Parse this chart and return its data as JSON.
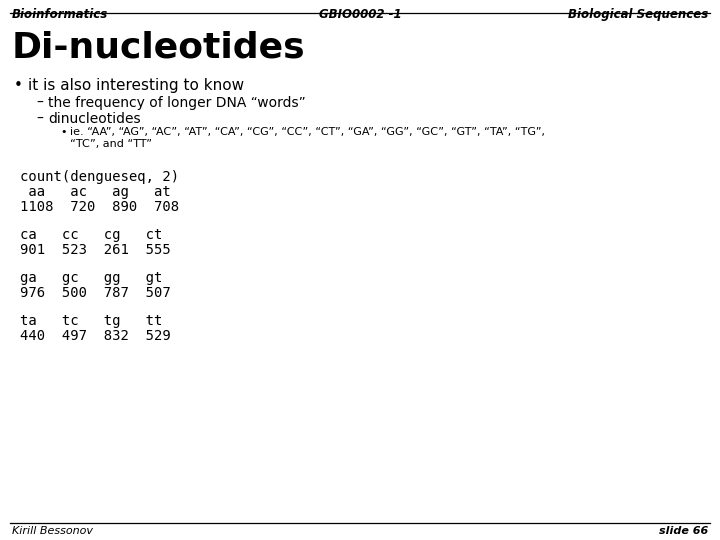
{
  "title_left": "Bioinformatics",
  "title_center": "GBIO0002 -1",
  "title_right": "Biological Sequences",
  "slide_title": "Di-nucleotides",
  "bullet1": "it is also interesting to know",
  "sub1": "the frequency of longer DNA “words”",
  "sub2": "dinucleotides",
  "sub3": "ie. “AA”, “AG”, “AC”, “AT”, “CA”, “CG”, “CC”, “CT”, “GA”, “GG”, “GC”, “GT”, “TA”, “TG”,",
  "sub3b": "“TC”, and “TT”",
  "code_line1": "count(dengueseq, 2)",
  "code_line2": " aa   ac   ag   at",
  "code_line3": "1108  720  890  708",
  "code_line4": "ca   cc   cg   ct",
  "code_line5": "901  523  261  555",
  "code_line6": "ga   gc   gg   gt",
  "code_line7": "976  500  787  507",
  "code_line8": "ta   tc   tg   tt",
  "code_line9": "440  497  832  529",
  "footer_left": "Kirill Bessonov",
  "footer_right": "slide 66",
  "bg_color": "#ffffff",
  "text_color": "#000000",
  "line_color": "#000000",
  "header_fontsize": 8.5,
  "title_fontsize": 26,
  "bullet_fontsize": 11,
  "sub_fontsize": 10,
  "subsub_fontsize": 8,
  "code_fontsize": 10,
  "footer_fontsize": 8
}
